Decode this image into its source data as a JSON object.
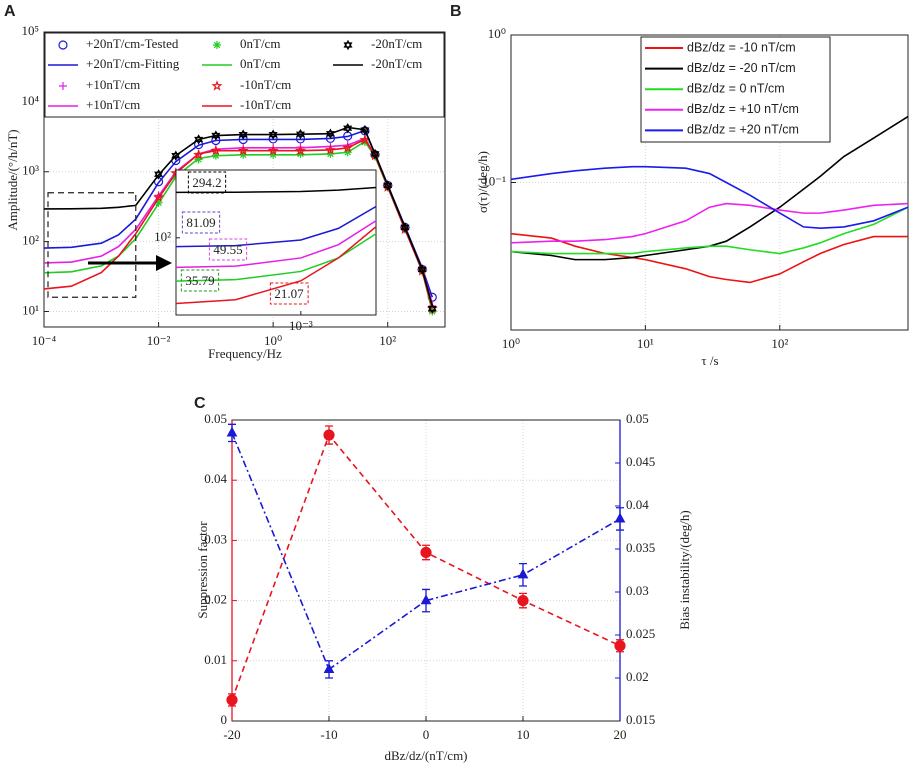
{
  "chart_data": [
    {
      "type": "line",
      "label": "A",
      "xlabel": "Frequency/Hz",
      "ylabel": "Amplitude/(°/h/nT)",
      "xscale": "log",
      "yscale": "log",
      "grid": true,
      "legend": "top",
      "xlim": [
        0.0001,
        1000
      ],
      "ylim": [
        6,
        100000
      ],
      "xticks": [
        {
          "value": 0.0001,
          "label": "10⁻⁴"
        },
        {
          "value": 0.01,
          "label": "10⁻²"
        },
        {
          "value": 1,
          "label": "10⁰"
        },
        {
          "value": 100,
          "label": "10²"
        }
      ],
      "yticks": [
        {
          "value": 10,
          "label": "10¹"
        },
        {
          "value": 100,
          "label": "10²"
        },
        {
          "value": 1000,
          "label": "10³"
        },
        {
          "value": 10000,
          "label": "10⁴"
        },
        {
          "value": 100000,
          "label": "10⁵"
        }
      ],
      "x": [
        0.0001,
        0.0003,
        0.001,
        0.002,
        0.004,
        0.01,
        0.02,
        0.05,
        0.1,
        0.3,
        1,
        3,
        10,
        20,
        40,
        60,
        100,
        200,
        400,
        600
      ],
      "series": [
        {
          "name": "+20nT/cm-Tested",
          "color": "#1a1ad6",
          "line_style": "none",
          "marker": "circle",
          "marker_filled": false,
          "values": [
            null,
            null,
            null,
            null,
            null,
            720,
            1450,
            2450,
            2800,
            2900,
            2950,
            2950,
            3000,
            3250,
            3850,
            1750,
            640,
            160,
            40,
            16
          ]
        },
        {
          "name": "+20nT/cm-Fitting",
          "color": "#1a1ad6",
          "line_style": "solid",
          "values": [
            81,
            83,
            95,
            125,
            210,
            700,
            1400,
            2400,
            2800,
            2900,
            2900,
            2900,
            3000,
            3200,
            3900,
            1800,
            650,
            165,
            42,
            16
          ]
        },
        {
          "name": "+10nT/cm",
          "color": "#e61ee6",
          "line_style": "none",
          "marker": "plus",
          "values": [
            null,
            null,
            null,
            null,
            null,
            460,
            1000,
            1800,
            2100,
            2200,
            2200,
            2250,
            2300,
            2400,
            2950,
            1700,
            610,
            150,
            39,
            12
          ]
        },
        {
          "name": "+10nT/cm",
          "color": "#e61ee6",
          "line_style": "solid",
          "values": [
            49.5,
            51,
            62,
            85,
            150,
            450,
            1000,
            1800,
            2100,
            2200,
            2200,
            2200,
            2300,
            2400,
            3000,
            1700,
            620,
            155,
            40,
            13
          ]
        },
        {
          "name": "0nT/cm",
          "color": "#22cc22",
          "line_style": "none",
          "marker": "asterisk",
          "values": [
            null,
            null,
            null,
            null,
            null,
            360,
            850,
            1500,
            1700,
            1750,
            1750,
            1800,
            1800,
            1900,
            2650,
            1650,
            600,
            150,
            37,
            10
          ]
        },
        {
          "name": "0nT/cm",
          "color": "#22cc22",
          "line_style": "solid",
          "values": [
            35.8,
            37,
            45,
            62,
            110,
            350,
            850,
            1550,
            1700,
            1750,
            1750,
            1750,
            1800,
            1900,
            2700,
            1650,
            600,
            150,
            38,
            10
          ]
        },
        {
          "name": "-10nT/cm",
          "color": "#e8141e",
          "line_style": "none",
          "marker": "star",
          "values": [
            null,
            null,
            null,
            null,
            null,
            430,
            950,
            1750,
            2000,
            2000,
            2000,
            2000,
            2050,
            2200,
            2850,
            1700,
            600,
            150,
            38,
            11
          ]
        },
        {
          "name": "-10nT/cm",
          "color": "#e8141e",
          "line_style": "solid",
          "values": [
            21,
            23,
            36,
            62,
            130,
            420,
            950,
            1800,
            2000,
            2000,
            2000,
            2000,
            2050,
            2200,
            2900,
            1700,
            610,
            150,
            38,
            11
          ]
        },
        {
          "name": "-20nT/cm",
          "color": "#000000",
          "line_style": "none",
          "marker": "hexagram",
          "values": [
            null,
            null,
            null,
            null,
            null,
            920,
            1700,
            2900,
            3300,
            3400,
            3400,
            3450,
            3500,
            4200,
            3950,
            1800,
            640,
            160,
            40,
            11
          ]
        },
        {
          "name": "-20nT/cm",
          "color": "#000000",
          "line_style": "solid",
          "values": [
            294,
            295,
            300,
            310,
            330,
            900,
            1700,
            2900,
            3300,
            3400,
            3400,
            3450,
            3500,
            4300,
            4000,
            1800,
            640,
            160,
            40,
            12
          ]
        }
      ],
      "inset": {
        "xlim": [
          0.0001,
          0.004
        ],
        "ylim": [
          16,
          500
        ],
        "xticks": [
          {
            "value": 0.001,
            "label": "10⁻³"
          }
        ],
        "yticks": [
          {
            "value": 100,
            "label": "10²"
          }
        ],
        "annotations": [
          {
            "text": "294.2",
            "color": "#000000"
          },
          {
            "text": "81.09",
            "color": "#6a3fc8"
          },
          {
            "text": "49.55",
            "color": "#e040e0"
          },
          {
            "text": "35.79",
            "color": "#1a9a1a"
          },
          {
            "text": "21.07",
            "color": "#e8141e"
          }
        ]
      }
    },
    {
      "type": "line",
      "label": "B",
      "xlabel": "τ /s",
      "ylabel": "σ(τ)/(deg/h)",
      "xscale": "log",
      "yscale": "log",
      "grid": true,
      "legend": "northeast",
      "xlim": [
        1,
        900
      ],
      "ylim": [
        0.01,
        1
      ],
      "xticks": [
        {
          "value": 1,
          "label": "10⁰"
        },
        {
          "value": 10,
          "label": "10¹"
        },
        {
          "value": 100,
          "label": "10²"
        }
      ],
      "yticks": [
        {
          "value": 0.1,
          "label": "10⁻¹"
        },
        {
          "value": 1,
          "label": "10⁰"
        }
      ],
      "x": [
        1,
        2,
        3,
        5,
        8,
        10,
        20,
        30,
        40,
        60,
        100,
        150,
        200,
        300,
        500,
        900
      ],
      "series": [
        {
          "name": "dBz/dz = -10 nT/cm",
          "color": "#ee1111",
          "line_style": "solid",
          "values": [
            0.045,
            0.042,
            0.037,
            0.033,
            0.031,
            0.03,
            0.026,
            0.023,
            0.022,
            0.021,
            0.024,
            0.029,
            0.033,
            0.038,
            0.043,
            0.043
          ]
        },
        {
          "name": "dBz/dz = -20  nT/cm",
          "color": "#000000",
          "line_style": "solid",
          "values": [
            0.034,
            0.032,
            0.03,
            0.03,
            0.031,
            0.032,
            0.035,
            0.037,
            0.04,
            0.05,
            0.068,
            0.09,
            0.11,
            0.15,
            0.2,
            0.28
          ]
        },
        {
          "name": "dBz/dz = 0  nT/cm",
          "color": "#22dd22",
          "line_style": "solid",
          "values": [
            0.034,
            0.033,
            0.033,
            0.033,
            0.033,
            0.034,
            0.036,
            0.037,
            0.037,
            0.035,
            0.033,
            0.036,
            0.039,
            0.045,
            0.052,
            0.068
          ]
        },
        {
          "name": "dBz/dz = +10  nT/cm",
          "color": "#ee22ee",
          "line_style": "solid",
          "values": [
            0.039,
            0.04,
            0.04,
            0.041,
            0.043,
            0.045,
            0.055,
            0.068,
            0.072,
            0.07,
            0.065,
            0.062,
            0.062,
            0.065,
            0.07,
            0.072
          ]
        },
        {
          "name": "dBz/dz = +20  nT/cm",
          "color": "#1a1aee",
          "line_style": "solid",
          "values": [
            0.105,
            0.115,
            0.12,
            0.125,
            0.128,
            0.128,
            0.125,
            0.115,
            0.1,
            0.082,
            0.062,
            0.05,
            0.049,
            0.05,
            0.055,
            0.068
          ]
        }
      ]
    },
    {
      "type": "line",
      "label": "C",
      "xlabel": "dBz/dz/(nT/cm)",
      "ylabel": "Suppression factor",
      "y2label": "Bias instability/(deg/h)",
      "grid": true,
      "y_axis_color": "#e8141e",
      "y2_axis_color": "#1a1ad6",
      "xlim": [
        -20,
        20
      ],
      "ylim": [
        0,
        0.05
      ],
      "y2lim": [
        0.015,
        0.05
      ],
      "xticks": [
        -20,
        -10,
        0,
        10,
        20
      ],
      "yticks": [
        0,
        0.01,
        0.02,
        0.03,
        0.04,
        0.05
      ],
      "y2ticks": [
        0.015,
        0.02,
        0.025,
        0.03,
        0.035,
        0.04,
        0.045,
        0.05
      ],
      "x": [
        -20,
        -10,
        0,
        10,
        20
      ],
      "series": [
        {
          "name": "Suppression factor",
          "color": "#e8141e",
          "line_style": "dashed",
          "marker": "circle",
          "marker_filled": true,
          "values": [
            0.0035,
            0.0475,
            0.028,
            0.02,
            0.0125
          ],
          "errors": [
            0.001,
            0.0015,
            0.0012,
            0.0012,
            0.001
          ]
        },
        {
          "name": "Bias instability/(deg/h)",
          "color": "#1a1ad6",
          "line_style": "dashdot",
          "marker": "triangle",
          "marker_filled": true,
          "axis": "y2",
          "values": [
            0.0485,
            0.021,
            0.029,
            0.032,
            0.0385
          ],
          "errors": [
            0.001,
            0.001,
            0.0013,
            0.0013,
            0.0013
          ]
        }
      ]
    }
  ]
}
